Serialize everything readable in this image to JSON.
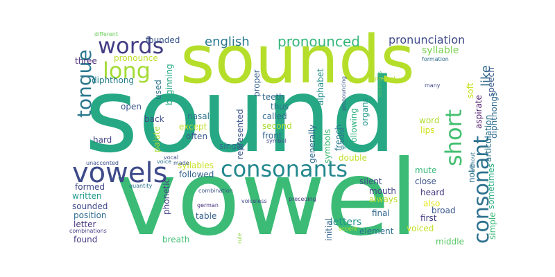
{
  "words": [
    {
      "id": "sound",
      "text": "sound",
      "color": "#26a884"
    },
    {
      "id": "vowel",
      "text": "vowel",
      "color": "#3bbb75"
    },
    {
      "id": "sounds",
      "text": "sounds",
      "color": "#b5de2b"
    },
    {
      "id": "vowels",
      "text": "vowels",
      "color": "#3e4a89"
    },
    {
      "id": "consonants",
      "text": "consonants",
      "color": "#23888e"
    },
    {
      "id": "words",
      "text": "words",
      "color": "#433e85"
    },
    {
      "id": "long",
      "text": "long",
      "color": "#a5db36"
    },
    {
      "id": "tongue",
      "text": "tongue",
      "color": "#2a788e"
    },
    {
      "id": "short",
      "text": "short",
      "color": "#44bf70"
    },
    {
      "id": "consonant",
      "text": "consonant",
      "color": "#2d718e"
    },
    {
      "id": "pronounced",
      "text": "pronounced",
      "color": "#35b779"
    },
    {
      "id": "english",
      "text": "english",
      "color": "#2a788e"
    },
    {
      "id": "pronunciation",
      "text": "pronunciation",
      "color": "#3e4989"
    },
    {
      "id": "syllable",
      "text": "syllable",
      "color": "#7ad151"
    },
    {
      "id": "like",
      "text": "like",
      "color": "#31688e"
    },
    {
      "id": "pronounce",
      "text": "pronounce",
      "color": "#bddf26"
    },
    {
      "id": "three",
      "text": "three",
      "color": "#482878"
    },
    {
      "id": "diphthong",
      "text": "diphthong",
      "color": "#287c8e"
    },
    {
      "id": "founded",
      "text": "founded",
      "color": "#39568c"
    },
    {
      "id": "beginning",
      "text": "beginning",
      "color": "#23a983"
    },
    {
      "id": "used",
      "text": "used",
      "color": "#2c738e"
    },
    {
      "id": "open",
      "text": "open",
      "color": "#39568c"
    },
    {
      "id": "back",
      "text": "back",
      "color": "#3e4a89"
    },
    {
      "id": "hard",
      "text": "hard",
      "color": "#424186"
    },
    {
      "id": "palate",
      "text": "palate",
      "color": "#a8db34"
    },
    {
      "id": "nasal",
      "text": "nasal",
      "color": "#2c728e"
    },
    {
      "id": "except",
      "text": "except",
      "color": "#c2df23"
    },
    {
      "id": "often",
      "text": "often",
      "color": "#38588c"
    },
    {
      "id": "syllables",
      "text": "syllables",
      "color": "#c8e020"
    },
    {
      "id": "formed",
      "text": "formed",
      "color": "#3f4788"
    },
    {
      "id": "written",
      "text": "written",
      "color": "#1f9a8a"
    },
    {
      "id": "sounded",
      "text": "sounded",
      "color": "#3f4889"
    },
    {
      "id": "position",
      "text": "position",
      "color": "#2f6c8e"
    },
    {
      "id": "letter",
      "text": "letter",
      "color": "#453781"
    },
    {
      "id": "found",
      "text": "found",
      "color": "#443a83"
    },
    {
      "id": "proper",
      "text": "proper",
      "color": "#35608d"
    },
    {
      "id": "teeth",
      "text": "teeth",
      "color": "#31688e"
    },
    {
      "id": "thus",
      "text": "thus",
      "color": "#2e6e8e"
    },
    {
      "id": "called",
      "text": "called",
      "color": "#2f6b8e"
    },
    {
      "id": "second",
      "text": "second",
      "color": "#a8db34"
    },
    {
      "id": "front",
      "text": "front",
      "color": "#31668e"
    },
    {
      "id": "represented",
      "text": "represented",
      "color": "#3a548c"
    },
    {
      "id": "single",
      "text": "single",
      "color": "#2e6d8e"
    },
    {
      "id": "followed",
      "text": "followed",
      "color": "#33638d"
    },
    {
      "id": "phonetic",
      "text": "phonetic",
      "color": "#424186"
    },
    {
      "id": "table",
      "text": "table",
      "color": "#355f8d"
    },
    {
      "id": "breath",
      "text": "breath",
      "color": "#40bd72"
    },
    {
      "id": "alphabet",
      "text": "alphabet",
      "color": "#218f8d"
    },
    {
      "id": "generally",
      "text": "generally",
      "color": "#2e6e8e"
    },
    {
      "id": "symbols",
      "text": "symbols",
      "color": "#3fbc73"
    },
    {
      "id": "french",
      "text": "french",
      "color": "#2a778e"
    },
    {
      "id": "following",
      "text": "following",
      "color": "#2ab07f"
    },
    {
      "id": "organs",
      "text": "organs",
      "color": "#1f958b"
    },
    {
      "id": "word",
      "text": "word",
      "color": "#b0dd2f"
    },
    {
      "id": "lips",
      "text": "lips",
      "color": "#d0e11c"
    },
    {
      "id": "double",
      "text": "double",
      "color": "#bddf26"
    },
    {
      "id": "silent",
      "text": "silent",
      "color": "#3f4788"
    },
    {
      "id": "mouth",
      "text": "mouth",
      "color": "#424086"
    },
    {
      "id": "always",
      "text": "always",
      "color": "#bade28"
    },
    {
      "id": "letters",
      "text": "letters",
      "color": "#20928c"
    },
    {
      "id": "final",
      "text": "final",
      "color": "#31678e"
    },
    {
      "id": "element",
      "text": "element",
      "color": "#2e6f8e"
    },
    {
      "id": "initial",
      "text": "initial",
      "color": "#32648e"
    },
    {
      "id": "mute",
      "text": "mute",
      "color": "#35b779"
    },
    {
      "id": "close",
      "text": "close",
      "color": "#3b528b"
    },
    {
      "id": "heard",
      "text": "heard",
      "color": "#453882"
    },
    {
      "id": "also",
      "text": "also",
      "color": "#e5e419"
    },
    {
      "id": "broad",
      "text": "broad",
      "color": "#39568c"
    },
    {
      "id": "first",
      "text": "first",
      "color": "#433e85"
    },
    {
      "id": "voiced",
      "text": "voiced",
      "color": "#c2df23"
    },
    {
      "id": "middle",
      "text": "middle",
      "color": "#58c765"
    },
    {
      "id": "soft",
      "text": "soft",
      "color": "#c8e020"
    },
    {
      "id": "aspirate",
      "text": "aspirate",
      "color": "#471365"
    },
    {
      "id": "articulation",
      "text": "articulation",
      "color": "#2b748e"
    },
    {
      "id": "speech",
      "text": "speech",
      "color": "#38588c"
    },
    {
      "id": "diphthongs",
      "text": "diphthongs",
      "color": "#306a8e"
    },
    {
      "id": "sometimes",
      "text": "sometimes",
      "color": "#29af7f"
    },
    {
      "id": "simple",
      "text": "simple",
      "color": "#3aba76"
    },
    {
      "id": "note",
      "text": "note",
      "color": "#2d718e"
    },
    {
      "id": "different",
      "text": "different",
      "color": "#6ccd5a"
    },
    {
      "id": "represent",
      "text": "represent",
      "color": "#b8de29"
    },
    {
      "id": "formation",
      "text": "formation",
      "color": "#2f6c8e"
    },
    {
      "id": "many",
      "text": "many",
      "color": "#3e4989"
    },
    {
      "id": "pronouncing",
      "text": "pronouncing",
      "color": "#3b528b"
    },
    {
      "id": "elements",
      "text": "elements",
      "color": "#4ac16d"
    },
    {
      "id": "guttural",
      "text": "guttural",
      "color": "#2a768e"
    },
    {
      "id": "symbol",
      "text": "symbol",
      "color": "#3f4788"
    },
    {
      "id": "vocal",
      "text": "vocal",
      "color": "#3e4a89"
    },
    {
      "id": "made",
      "text": "made",
      "color": "#38598c"
    },
    {
      "id": "voice",
      "text": "voice",
      "color": "#2d718e"
    },
    {
      "id": "unaccented",
      "text": "unaccented",
      "color": "#3d4d8a"
    },
    {
      "id": "quantity",
      "text": "quantity",
      "color": "#2d718e"
    },
    {
      "id": "combination",
      "text": "combination",
      "color": "#3b528b"
    },
    {
      "id": "combinations",
      "text": "combinations",
      "color": "#433e85"
    },
    {
      "id": "voiceless",
      "text": "voiceless",
      "color": "#3f4889"
    },
    {
      "id": "preceding",
      "text": "preceding",
      "color": "#453781"
    },
    {
      "id": "german",
      "text": "german",
      "color": "#472d7b"
    },
    {
      "id": "rule",
      "text": "rule",
      "color": "#8fd744"
    },
    {
      "id": "accent",
      "text": "accent",
      "color": "#b5de2b"
    },
    {
      "id": "without",
      "text": "without",
      "color": "#2c728e"
    }
  ]
}
